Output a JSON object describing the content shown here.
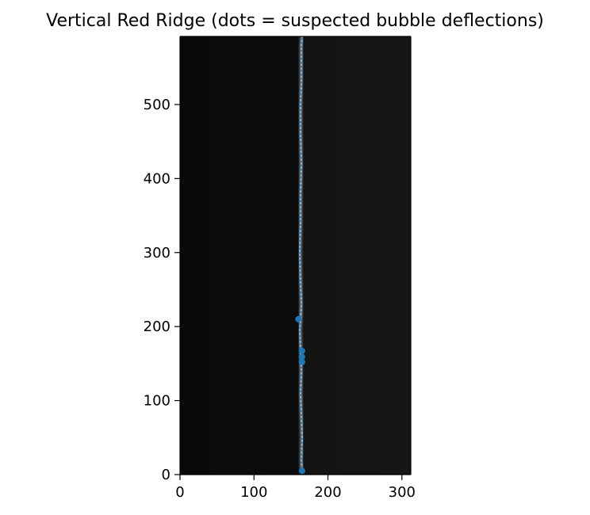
{
  "chart_data": {
    "type": "scatter",
    "title": "Vertical Red Ridge (dots = suspected bubble deflections)",
    "xlabel": "",
    "ylabel": "",
    "xlim": [
      0,
      312
    ],
    "ylim": [
      0,
      592
    ],
    "x_ticks": [
      0,
      100,
      200,
      300
    ],
    "y_ticks": [
      0,
      100,
      200,
      300,
      400,
      500
    ],
    "grid": false,
    "background_image": "dark grayscale image with a thin bright vertical ridge near x=163",
    "series": [
      {
        "name": "ridge",
        "kind": "line",
        "color": "#1f77b4",
        "x": [
          165,
          164,
          165,
          164,
          163,
          164,
          163,
          162,
          163,
          164,
          163,
          162,
          163,
          163,
          164,
          163,
          163,
          164,
          164,
          164,
          165
        ],
        "y": [
          4,
          20,
          50,
          80,
          110,
          140,
          170,
          195,
          208,
          230,
          260,
          300,
          340,
          380,
          420,
          460,
          500,
          530,
          560,
          580,
          592
        ]
      },
      {
        "name": "suspected bubble deflections",
        "kind": "scatter",
        "color": "#1f77b4",
        "x": [
          160,
          165,
          165,
          165,
          165
        ],
        "y": [
          210,
          167,
          159,
          152,
          5
        ]
      }
    ],
    "ridge_color": "#1f77b4",
    "dot_color": "#1f77b4"
  },
  "colors": {
    "image_dark": "#0b0b0b",
    "ridge_glow": "#cfd8e3",
    "accent": "#1f77b4"
  }
}
